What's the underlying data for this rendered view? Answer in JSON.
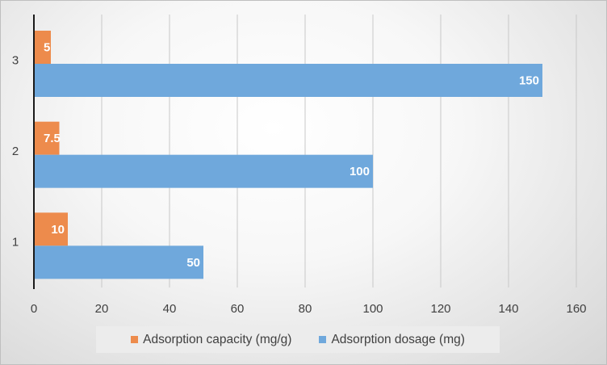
{
  "chart_data": {
    "type": "bar",
    "orientation": "horizontal",
    "title": "",
    "xlabel": "",
    "ylabel": "",
    "categories": [
      "1",
      "2",
      "3"
    ],
    "xlim": [
      0,
      160
    ],
    "x_ticks": [
      "0",
      "20",
      "40",
      "60",
      "80",
      "100",
      "120",
      "140",
      "160"
    ],
    "grid": true,
    "legend_position": "bottom",
    "series": [
      {
        "name": "Adsorption capacity (mg/g)",
        "color": "#ed8b4c",
        "values": [
          10,
          7.5,
          5
        ],
        "labels": [
          "10",
          "7.5",
          "5"
        ]
      },
      {
        "name": "Adsorption dosage (mg)",
        "color": "#6fa8dc",
        "values": [
          50,
          100,
          150
        ],
        "labels": [
          "50",
          "100",
          "150"
        ]
      }
    ]
  }
}
